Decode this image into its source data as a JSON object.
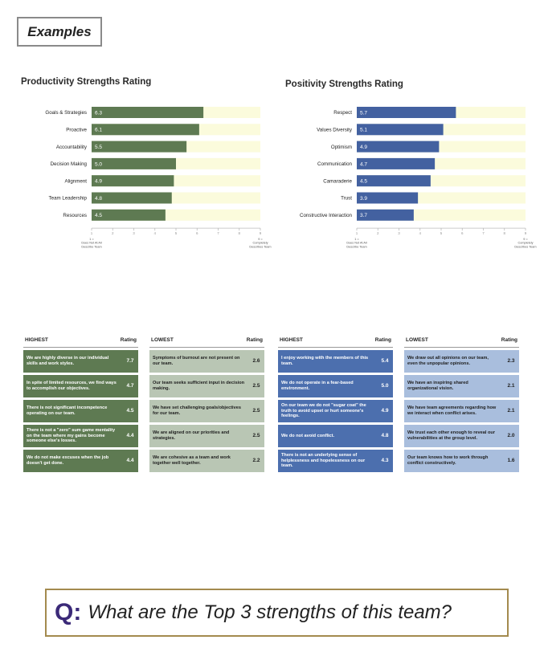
{
  "header": {
    "examples_label": "Examples"
  },
  "chart_data": [
    {
      "type": "bar",
      "orientation": "horizontal",
      "title": "Productivity Strengths Rating",
      "categories": [
        "Goals & Strategies",
        "Proactive",
        "Accountability",
        "Decision Making",
        "Alignment",
        "Team Leadership",
        "Resources"
      ],
      "values": [
        6.3,
        6.1,
        5.5,
        5.0,
        4.9,
        4.8,
        4.5
      ],
      "value_labels": [
        "6.3",
        "6.1",
        "5.5",
        "5.0",
        "4.9",
        "4.8",
        "4.5"
      ],
      "xlim": [
        1,
        9
      ],
      "ticks": [
        "1",
        "2",
        "3",
        "4",
        "5",
        "6",
        "7",
        "8",
        "9"
      ],
      "low_anchor": [
        "1 =",
        "Does Not At All",
        "Describe Team"
      ],
      "high_anchor": [
        "9 =",
        "Completely",
        "Describes Team"
      ],
      "bar_color": "#5e7a52",
      "track_color": "#fbfbdc"
    },
    {
      "type": "bar",
      "orientation": "horizontal",
      "title": "Positivity Strengths Rating",
      "categories": [
        "Respect",
        "Values Diversity",
        "Optimism",
        "Communication",
        "Camaraderie",
        "Trust",
        "Constructive Interaction"
      ],
      "values": [
        5.7,
        5.1,
        4.9,
        4.7,
        4.5,
        3.9,
        3.7
      ],
      "value_labels": [
        "5.7",
        "5.1",
        "4.9",
        "4.7",
        "4.5",
        "3.9",
        "3.7"
      ],
      "xlim": [
        1,
        9
      ],
      "ticks": [
        "1",
        "2",
        "3",
        "4",
        "5",
        "6",
        "7",
        "8",
        "9"
      ],
      "low_anchor": [
        "1 =",
        "Does Not At All",
        "Describe Team"
      ],
      "high_anchor": [
        "9 =",
        "Completely",
        "Describes Team"
      ],
      "bar_color": "#4361a0",
      "track_color": "#fbfbdc"
    },
    {
      "type": "table",
      "header": "HIGHEST",
      "rating_header": "Rating",
      "bg": "#5e7a52",
      "fg": "#ffffff",
      "rows": [
        {
          "text": "We are highly diverse in our individual skills and work styles.",
          "rating": "7.7"
        },
        {
          "text": "In spite of limited resources, we find ways to accomplish our objectives.",
          "rating": "4.7"
        },
        {
          "text": "There is not significant incompetence operating on our team.",
          "rating": "4.5"
        },
        {
          "text": "There is not a \"zero\" sum game mentality on the team where my gains become someone else's losses.",
          "rating": "4.4"
        },
        {
          "text": "We do not make excuses when the job doesn't get done.",
          "rating": "4.4"
        }
      ]
    },
    {
      "type": "table",
      "header": "LOWEST",
      "rating_header": "Rating",
      "bg": "#b9c6b4",
      "fg": "#1e1e1e",
      "rows": [
        {
          "text": "Symptoms of burnout are not present on our team.",
          "rating": "2.6"
        },
        {
          "text": "Our team seeks sufficient input in decision making.",
          "rating": "2.5"
        },
        {
          "text": "We have set challenging goals/objectives for our team.",
          "rating": "2.5"
        },
        {
          "text": "We are aligned on our priorities and strategies.",
          "rating": "2.5"
        },
        {
          "text": "We are cohesive as a team and work together well together.",
          "rating": "2.2"
        }
      ]
    },
    {
      "type": "table",
      "header": "HIGHEST",
      "rating_header": "Rating",
      "bg": "#4c6fae",
      "fg": "#ffffff",
      "rows": [
        {
          "text": "I enjoy working with the members of this team.",
          "rating": "5.4"
        },
        {
          "text": "We do not operate in a fear-based environment.",
          "rating": "5.0"
        },
        {
          "text": "On our team we do not \"sugar coat\" the truth to avoid upset or hurt someone's feelings.",
          "rating": "4.9"
        },
        {
          "text": "We do not avoid conflict.",
          "rating": "4.8"
        },
        {
          "text": "There is not an underlying sense of helplessness and hopelessness on our team.",
          "rating": "4.3"
        }
      ]
    },
    {
      "type": "table",
      "header": "LOWEST",
      "rating_header": "Rating",
      "bg": "#a9bedd",
      "fg": "#1e1e1e",
      "rows": [
        {
          "text": "We draw out all opinions on our team, even the unpopular opinions.",
          "rating": "2.3"
        },
        {
          "text": "We have an inspiring shared organizational vision.",
          "rating": "2.1"
        },
        {
          "text": "We have team agreements regarding how we interact when conflict arises.",
          "rating": "2.1"
        },
        {
          "text": "We trust each other enough to reveal our vulnerabilities at the group level.",
          "rating": "2.0"
        },
        {
          "text": "Our team knows how to work through conflict constructively.",
          "rating": "1.6"
        }
      ]
    }
  ],
  "question": {
    "letter": "Q:",
    "text": "What are the Top 3 strengths of this team?"
  }
}
